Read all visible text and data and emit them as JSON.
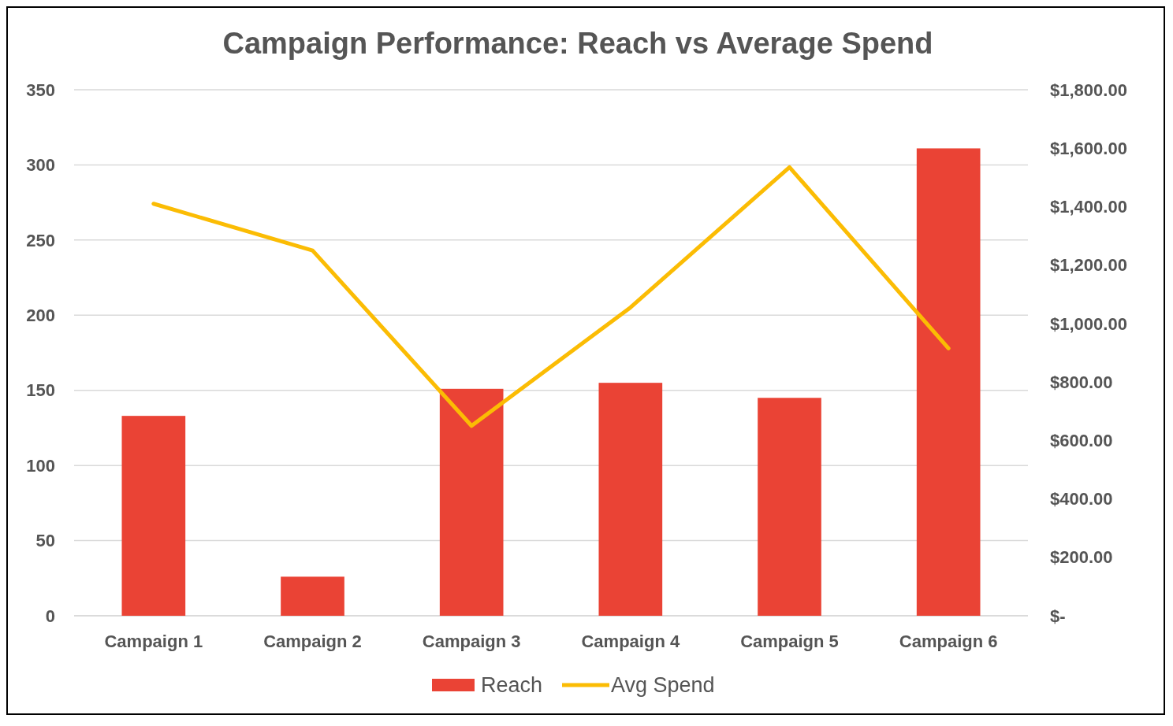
{
  "chart_data": {
    "type": "bar",
    "title": "Campaign Performance: Reach vs Average Spend",
    "categories": [
      "Campaign 1",
      "Campaign 2",
      "Campaign 3",
      "Campaign 4",
      "Campaign 5",
      "Campaign 6"
    ],
    "series": [
      {
        "name": "Reach",
        "color": "#ea4335",
        "values": [
          133,
          26,
          151,
          155,
          145,
          311
        ]
      },
      {
        "name": "Avg Spend",
        "type": "line",
        "axis": "y2",
        "color": "#fbbc04",
        "values": [
          1410,
          1250,
          650,
          1055,
          1535,
          915
        ]
      }
    ],
    "ylim": [
      0,
      350
    ],
    "yticks": [
      0,
      50,
      100,
      150,
      200,
      250,
      300,
      350
    ],
    "y2lim": [
      0,
      1800
    ],
    "y2ticks": [
      {
        "value": 0,
        "label": "$-"
      },
      {
        "value": 200,
        "label": "$200.00"
      },
      {
        "value": 400,
        "label": "$400.00"
      },
      {
        "value": 600,
        "label": "$600.00"
      },
      {
        "value": 800,
        "label": "$800.00"
      },
      {
        "value": 1000,
        "label": "$1,000.00"
      },
      {
        "value": 1200,
        "label": "$1,200.00"
      },
      {
        "value": 1400,
        "label": "$1,400.00"
      },
      {
        "value": 1600,
        "label": "$1,600.00"
      },
      {
        "value": 1800,
        "label": "$1,800.00"
      }
    ],
    "grid": "y",
    "legend": "bottom",
    "marker": "none",
    "line_style": "solid"
  }
}
